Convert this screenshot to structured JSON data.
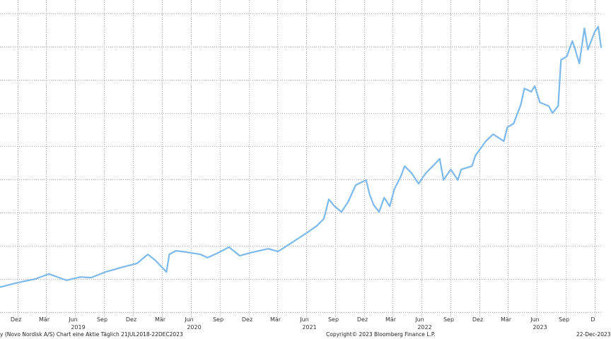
{
  "chart_data": {
    "type": "line",
    "title": "",
    "xlabel": "",
    "ylabel": "",
    "y_axis_labels_shown": false,
    "ylim": [
      0,
      9
    ],
    "grid": true,
    "line_color": "#7cb9ec",
    "grid_color": "#a8a8a8",
    "x_ticks": [
      {
        "date": "2018-12-01",
        "label": "Dez"
      },
      {
        "date": "2019-03-01",
        "label": "Mär"
      },
      {
        "date": "2019-06-01",
        "label": "Jun",
        "year": "2019"
      },
      {
        "date": "2019-09-01",
        "label": "Sep"
      },
      {
        "date": "2019-12-01",
        "label": "Dez"
      },
      {
        "date": "2020-03-01",
        "label": "Mär"
      },
      {
        "date": "2020-06-01",
        "label": "Jun",
        "year": "2020"
      },
      {
        "date": "2020-09-01",
        "label": "Sep"
      },
      {
        "date": "2020-12-01",
        "label": "Dez"
      },
      {
        "date": "2021-03-01",
        "label": "Mär"
      },
      {
        "date": "2021-06-01",
        "label": "Jun",
        "year": "2021"
      },
      {
        "date": "2021-09-01",
        "label": "Sep"
      },
      {
        "date": "2021-12-01",
        "label": "Dez"
      },
      {
        "date": "2022-03-01",
        "label": "Mär"
      },
      {
        "date": "2022-06-01",
        "label": "Jun",
        "year": "2022"
      },
      {
        "date": "2022-09-01",
        "label": "Sep"
      },
      {
        "date": "2022-12-01",
        "label": "Dez"
      },
      {
        "date": "2023-03-01",
        "label": "Mär"
      },
      {
        "date": "2023-06-01",
        "label": "Jun",
        "year": "2023"
      },
      {
        "date": "2023-09-01",
        "label": "Sep"
      },
      {
        "date": "2023-12-01",
        "label": "D"
      }
    ],
    "series": [
      {
        "points": [
          [
            "2018-07-21",
            0.7
          ],
          [
            "2018-10-01",
            0.74
          ],
          [
            "2018-12-01",
            0.89
          ],
          [
            "2019-01-26",
            1.0
          ],
          [
            "2019-03-10",
            1.15
          ],
          [
            "2019-05-04",
            0.96
          ],
          [
            "2019-06-18",
            1.06
          ],
          [
            "2019-07-21",
            1.04
          ],
          [
            "2019-09-05",
            1.21
          ],
          [
            "2019-10-30",
            1.36
          ],
          [
            "2019-12-14",
            1.47
          ],
          [
            "2020-01-17",
            1.74
          ],
          [
            "2020-02-09",
            1.57
          ],
          [
            "2020-03-16",
            1.21
          ],
          [
            "2020-03-25",
            1.74
          ],
          [
            "2020-04-15",
            1.85
          ],
          [
            "2020-05-18",
            1.81
          ],
          [
            "2020-07-02",
            1.74
          ],
          [
            "2020-07-24",
            1.64
          ],
          [
            "2020-08-27",
            1.79
          ],
          [
            "2020-09-30",
            1.96
          ],
          [
            "2020-11-03",
            1.7
          ],
          [
            "2020-12-06",
            1.79
          ],
          [
            "2021-02-01",
            1.91
          ],
          [
            "2021-03-04",
            1.83
          ],
          [
            "2021-03-26",
            1.96
          ],
          [
            "2021-04-29",
            2.17
          ],
          [
            "2021-06-02",
            2.38
          ],
          [
            "2021-07-05",
            2.6
          ],
          [
            "2021-07-27",
            2.81
          ],
          [
            "2021-08-12",
            3.4
          ],
          [
            "2021-08-30",
            3.19
          ],
          [
            "2021-09-21",
            3.02
          ],
          [
            "2021-10-13",
            3.34
          ],
          [
            "2021-11-05",
            3.83
          ],
          [
            "2021-12-08",
            3.98
          ],
          [
            "2021-12-19",
            3.55
          ],
          [
            "2022-01-01",
            3.23
          ],
          [
            "2022-01-18",
            3.02
          ],
          [
            "2022-02-03",
            3.45
          ],
          [
            "2022-02-21",
            3.19
          ],
          [
            "2022-03-07",
            3.7
          ],
          [
            "2022-03-28",
            4.09
          ],
          [
            "2022-04-09",
            4.4
          ],
          [
            "2022-05-01",
            4.19
          ],
          [
            "2022-05-23",
            3.87
          ],
          [
            "2022-06-15",
            4.19
          ],
          [
            "2022-07-07",
            4.4
          ],
          [
            "2022-07-29",
            4.62
          ],
          [
            "2022-08-10",
            3.98
          ],
          [
            "2022-09-02",
            4.3
          ],
          [
            "2022-09-24",
            3.98
          ],
          [
            "2022-10-05",
            4.3
          ],
          [
            "2022-11-08",
            4.4
          ],
          [
            "2022-11-19",
            4.72
          ],
          [
            "2022-12-22",
            5.15
          ],
          [
            "2023-01-14",
            5.36
          ],
          [
            "2023-02-17",
            5.15
          ],
          [
            "2023-02-28",
            5.57
          ],
          [
            "2023-03-20",
            5.68
          ],
          [
            "2023-04-12",
            6.26
          ],
          [
            "2023-04-23",
            6.74
          ],
          [
            "2023-05-15",
            6.64
          ],
          [
            "2023-05-26",
            6.81
          ],
          [
            "2023-06-11",
            6.32
          ],
          [
            "2023-07-09",
            6.21
          ],
          [
            "2023-07-21",
            6.0
          ],
          [
            "2023-08-08",
            6.21
          ],
          [
            "2023-08-17",
            7.6
          ],
          [
            "2023-09-04",
            7.7
          ],
          [
            "2023-09-22",
            8.17
          ],
          [
            "2023-10-01",
            7.91
          ],
          [
            "2023-10-14",
            7.49
          ],
          [
            "2023-10-30",
            8.55
          ],
          [
            "2023-11-10",
            7.91
          ],
          [
            "2023-12-02",
            8.45
          ],
          [
            "2023-12-13",
            8.6
          ],
          [
            "2023-12-22",
            7.96
          ]
        ]
      }
    ]
  },
  "footer": {
    "description": "y (Novo Nordisk A/S) Chart eine Aktie  Täglich 21JUL2018-22DEC2023",
    "copyright": "Copyright© 2023 Bloomberg Finance L.P.",
    "date": "22-Dec-2023"
  }
}
